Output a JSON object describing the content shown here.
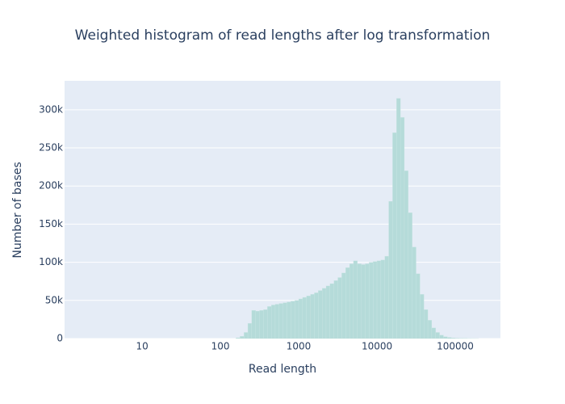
{
  "chart_data": {
    "type": "histogram",
    "title": "Weighted histogram of read lengths after log transformation",
    "x_label": "Read length",
    "y_label": "Number of bases",
    "color": "#b5dbd9",
    "x_scale": "log",
    "grid": true,
    "bins": [
      158,
      178,
      200,
      224,
      251,
      282,
      316,
      355,
      398,
      447,
      501,
      562,
      631,
      708,
      794,
      891,
      1000,
      1122,
      1259,
      1413,
      1585,
      1778,
      1995,
      2239,
      2512,
      2818,
      3162,
      3548,
      3981,
      4467,
      5012,
      5623,
      6310,
      7079,
      7943,
      8913,
      10000,
      11220,
      12589,
      14125,
      15849,
      17783,
      19953,
      22387,
      25119,
      28184,
      31623,
      35481,
      39811,
      44668,
      50119,
      56234,
      63096,
      70795,
      79433,
      89125,
      100000,
      112202,
      125893,
      141254,
      158489,
      177828,
      199526
    ],
    "values": [
      1000,
      3000,
      8000,
      20000,
      37000,
      36000,
      37000,
      38000,
      42000,
      44000,
      45000,
      46000,
      47000,
      48000,
      49000,
      50000,
      52000,
      54000,
      56000,
      58000,
      60000,
      63000,
      66000,
      69000,
      72000,
      76000,
      80000,
      86000,
      93000,
      98000,
      102000,
      98000,
      97000,
      98000,
      100000,
      101000,
      102000,
      103000,
      108000,
      180000,
      270000,
      315000,
      290000,
      220000,
      165000,
      120000,
      85000,
      58000,
      38000,
      24000,
      14000,
      8000,
      4500,
      2500,
      1500,
      900,
      500,
      300,
      200,
      100,
      60,
      30
    ],
    "xlim": [
      1.02,
      378000
    ],
    "xticks": [
      10,
      100,
      1000,
      10000,
      100000
    ],
    "ylim": [
      0,
      338000
    ],
    "yticks": [
      0,
      {
        "value": 50000,
        "label": "50k"
      },
      {
        "value": 100000,
        "label": "100k"
      },
      {
        "value": 150000,
        "label": "150k"
      },
      {
        "value": 200000,
        "label": "200k"
      },
      {
        "value": 250000,
        "label": "250k"
      },
      {
        "value": 300000,
        "label": "300k"
      }
    ]
  }
}
